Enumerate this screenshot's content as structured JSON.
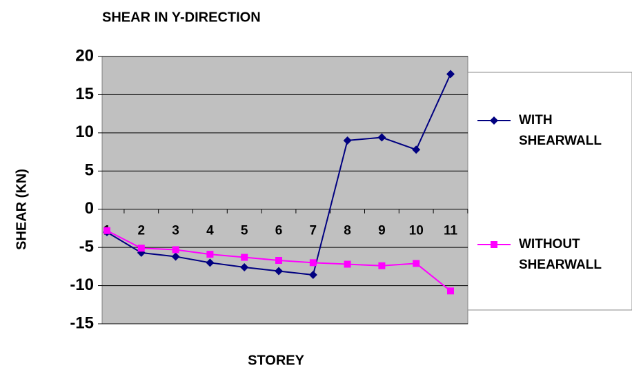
{
  "chart_data": {
    "type": "line",
    "title": "SHEAR IN Y-DIRECTION",
    "x_label": "STOREY",
    "y_label": "SHEAR (KN)",
    "categories": [
      "1",
      "2",
      "3",
      "4",
      "5",
      "6",
      "7",
      "8",
      "9",
      "10",
      "11"
    ],
    "series": [
      {
        "name": "WITH SHEARWALL",
        "color": "#000080",
        "marker": "diamond",
        "values": [
          -3,
          -5.7,
          -6.2,
          -7,
          -7.6,
          -8.1,
          -8.6,
          9,
          9.4,
          7.8,
          17.7
        ]
      },
      {
        "name": "WITHOUT SHEARWALL",
        "color": "#ff00ff",
        "marker": "square",
        "values": [
          -2.8,
          -5.1,
          -5.3,
          -5.9,
          -6.3,
          -6.7,
          -7,
          -7.2,
          -7.4,
          -7.1,
          -10.7
        ]
      }
    ],
    "ylim": [
      -15,
      20
    ],
    "yticks": [
      -15,
      -10,
      -5,
      0,
      5,
      10,
      15,
      20
    ],
    "grid": true,
    "plot_background": "#c0c0c0",
    "legend": "right"
  }
}
